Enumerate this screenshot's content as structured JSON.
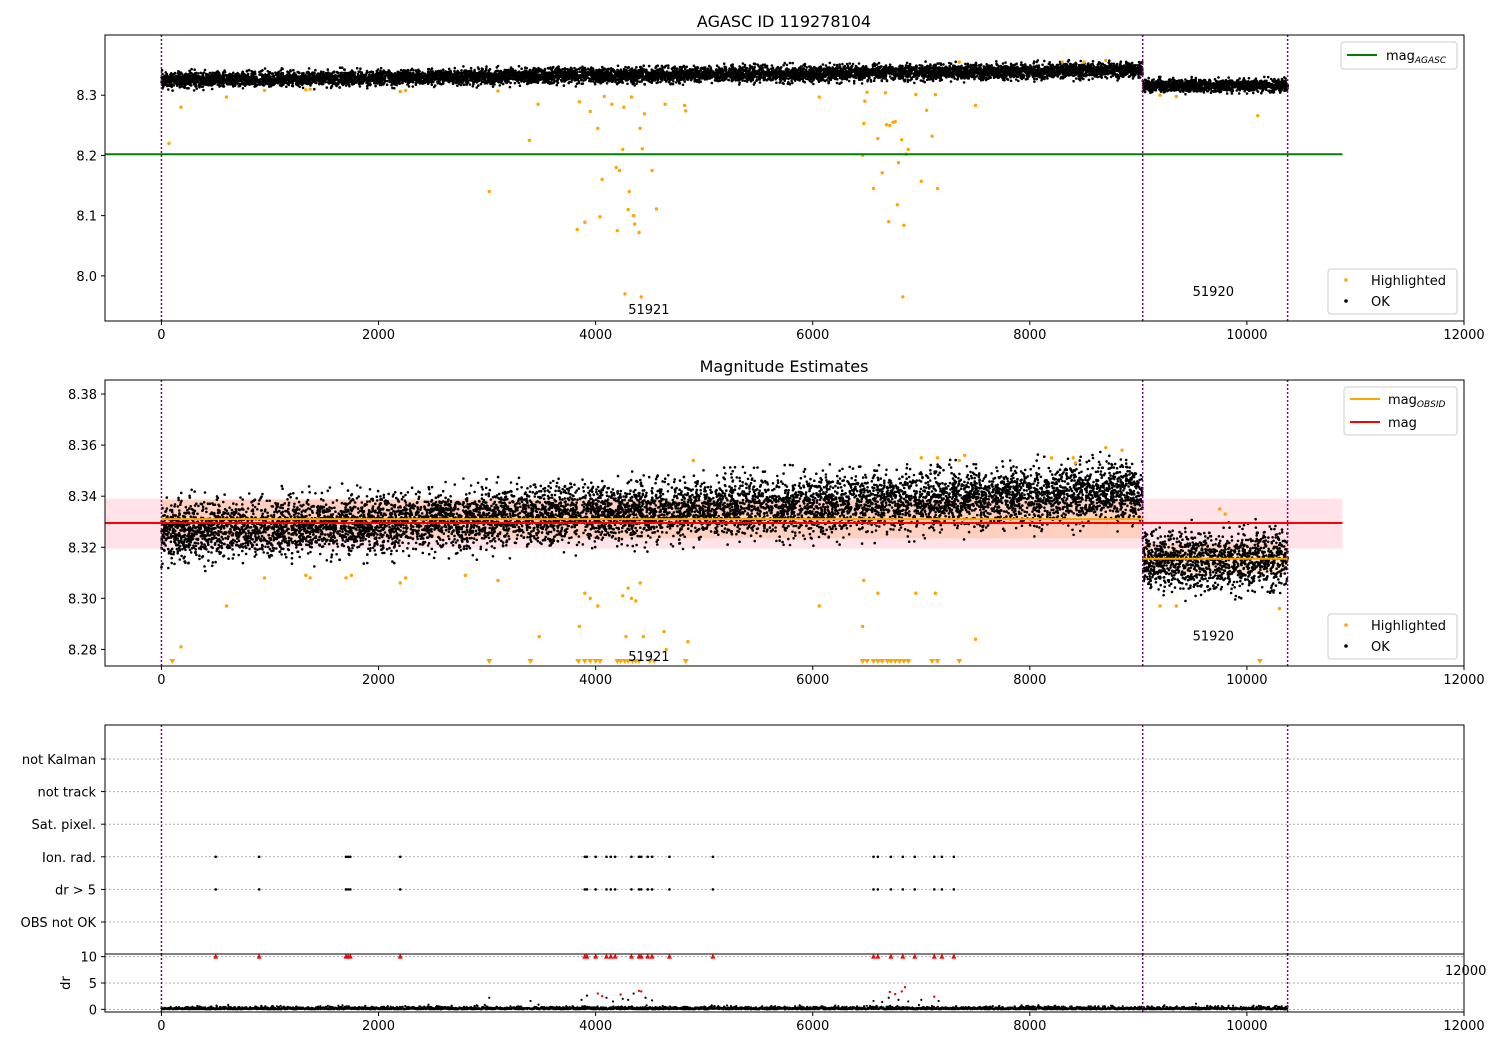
{
  "chart_data": [
    {
      "type": "scatter",
      "title": "AGASC ID 119278104",
      "xlim": [
        -520,
        12000
      ],
      "ylim": [
        7.925,
        8.4
      ],
      "x_ticks": [
        0,
        2000,
        4000,
        6000,
        8000,
        10000,
        12000
      ],
      "y_ticks": [
        8.0,
        8.1,
        8.2,
        8.3
      ],
      "y_tick_labels": [
        "8.0",
        "8.1",
        "8.2",
        "8.3"
      ],
      "grid": false,
      "vlines": [
        0,
        9040,
        10375
      ],
      "segments": [
        {
          "start": 0,
          "end": 9040,
          "label": "51921",
          "label_x": 4300,
          "label_y": 7.945
        },
        {
          "start": 9040,
          "end": 10375,
          "label": "51920",
          "label_x": 9500,
          "label_y": 7.975
        }
      ],
      "lines": [
        {
          "name": "mag_AGASC",
          "y": 8.202,
          "x_range": [
            -520,
            10880
          ],
          "color": "#008000"
        }
      ],
      "ok_bands": [
        {
          "x": [
            0,
            9040
          ],
          "center": [
            8.325,
            8.342
          ],
          "spread": 0.011
        },
        {
          "x": [
            9040,
            10375
          ],
          "center": [
            8.316,
            8.316
          ],
          "spread": 0.009
        }
      ],
      "highlighted_points": [
        [
          70,
          8.22
        ],
        [
          180,
          8.28
        ],
        [
          600,
          8.297
        ],
        [
          950,
          8.308
        ],
        [
          1330,
          8.309
        ],
        [
          1370,
          8.31
        ],
        [
          2200,
          8.306
        ],
        [
          2250,
          8.308
        ],
        [
          3020,
          8.14
        ],
        [
          3100,
          8.307
        ],
        [
          3390,
          8.225
        ],
        [
          3470,
          8.285
        ],
        [
          3830,
          8.077
        ],
        [
          3850,
          8.289
        ],
        [
          3900,
          8.089
        ],
        [
          3950,
          8.273
        ],
        [
          4020,
          8.245
        ],
        [
          4040,
          8.098
        ],
        [
          4060,
          8.16
        ],
        [
          4080,
          8.298
        ],
        [
          4150,
          8.285
        ],
        [
          4190,
          8.18
        ],
        [
          4200,
          8.075
        ],
        [
          4220,
          8.175
        ],
        [
          4250,
          8.21
        ],
        [
          4260,
          8.28
        ],
        [
          4270,
          7.97
        ],
        [
          4300,
          8.11
        ],
        [
          4310,
          8.14
        ],
        [
          4330,
          8.297
        ],
        [
          4350,
          8.1
        ],
        [
          4360,
          8.086
        ],
        [
          4400,
          8.072
        ],
        [
          4410,
          8.245
        ],
        [
          4420,
          7.965
        ],
        [
          4430,
          8.211
        ],
        [
          4450,
          8.269
        ],
        [
          4520,
          8.175
        ],
        [
          4560,
          8.111
        ],
        [
          4640,
          8.285
        ],
        [
          4820,
          8.283
        ],
        [
          4830,
          8.274
        ],
        [
          6060,
          8.297
        ],
        [
          6460,
          8.2
        ],
        [
          6470,
          8.253
        ],
        [
          6480,
          8.29
        ],
        [
          6500,
          8.305
        ],
        [
          6560,
          8.145
        ],
        [
          6600,
          8.228
        ],
        [
          6640,
          8.171
        ],
        [
          6670,
          8.304
        ],
        [
          6680,
          8.251
        ],
        [
          6700,
          8.09
        ],
        [
          6710,
          8.25
        ],
        [
          6740,
          8.255
        ],
        [
          6760,
          8.256
        ],
        [
          6780,
          8.118
        ],
        [
          6790,
          8.188
        ],
        [
          6820,
          8.226
        ],
        [
          6840,
          8.084
        ],
        [
          6860,
          8.202
        ],
        [
          6880,
          8.21
        ],
        [
          6830,
          7.965
        ],
        [
          6950,
          8.301
        ],
        [
          7000,
          8.157
        ],
        [
          7050,
          8.275
        ],
        [
          7100,
          8.232
        ],
        [
          7130,
          8.301
        ],
        [
          7150,
          8.145
        ],
        [
          7350,
          8.355
        ],
        [
          7500,
          8.283
        ],
        [
          8300,
          8.355
        ],
        [
          8500,
          8.355
        ],
        [
          8700,
          8.358
        ],
        [
          9200,
          8.3
        ],
        [
          9350,
          8.298
        ],
        [
          10100,
          8.266
        ]
      ],
      "legend": {
        "position": "top-right",
        "entries": [
          "mag_AGASC"
        ]
      },
      "legend_points": {
        "position": "bottom-right",
        "entries": [
          "Highlighted",
          "OK"
        ]
      }
    },
    {
      "type": "scatter",
      "title": "Magnitude Estimates",
      "xlim": [
        -520,
        12000
      ],
      "ylim": [
        8.2735,
        8.3855
      ],
      "x_ticks": [
        0,
        2000,
        4000,
        6000,
        8000,
        10000,
        12000
      ],
      "y_ticks": [
        8.28,
        8.3,
        8.32,
        8.34,
        8.36,
        8.38
      ],
      "y_tick_labels": [
        "8.28",
        "8.30",
        "8.32",
        "8.34",
        "8.36",
        "8.38"
      ],
      "grid": false,
      "vlines": [
        0,
        9040,
        10375
      ],
      "segments": [
        {
          "start": 0,
          "end": 9040,
          "label": "51921",
          "label_x": 4300,
          "label_y": 8.2775
        },
        {
          "start": 9040,
          "end": 10375,
          "label": "51920",
          "label_x": 9500,
          "label_y": 8.2855
        }
      ],
      "lines": [
        {
          "name": "mag_OBSID",
          "segments": [
            {
              "x": [
                0,
                9040
              ],
              "y": 8.331
            },
            {
              "x": [
                9040,
                10375
              ],
              "y": 8.3155
            }
          ],
          "color": "#ffa500"
        },
        {
          "name": "mag",
          "y": 8.3295,
          "x_range": [
            -520,
            10880
          ],
          "color": "#ff0000"
        }
      ],
      "mag_band": {
        "low": 8.3195,
        "high": 8.339
      },
      "obsid_bands": [
        {
          "x": [
            0,
            9040
          ],
          "low": 8.3235,
          "high": 8.3385
        },
        {
          "x": [
            9040,
            10375
          ],
          "low": 8.3095,
          "high": 8.3215
        }
      ],
      "ok_bands": [
        {
          "x": [
            0,
            9040
          ],
          "center": [
            8.326,
            8.342
          ],
          "spread": 0.01
        },
        {
          "x": [
            9040,
            10375
          ],
          "center": [
            8.315,
            8.315
          ],
          "spread": 0.01
        }
      ],
      "highlighted_points": [
        [
          180,
          8.281
        ],
        [
          600,
          8.297
        ],
        [
          950,
          8.308
        ],
        [
          1330,
          8.309
        ],
        [
          1370,
          8.308
        ],
        [
          1700,
          8.308
        ],
        [
          1750,
          8.309
        ],
        [
          2200,
          8.306
        ],
        [
          2250,
          8.308
        ],
        [
          2800,
          8.309
        ],
        [
          3100,
          8.307
        ],
        [
          3480,
          8.285
        ],
        [
          3850,
          8.289
        ],
        [
          3900,
          8.302
        ],
        [
          3950,
          8.3
        ],
        [
          4020,
          8.297
        ],
        [
          4250,
          8.301
        ],
        [
          4280,
          8.285
        ],
        [
          4300,
          8.304
        ],
        [
          4330,
          8.3
        ],
        [
          4370,
          8.299
        ],
        [
          4410,
          8.306
        ],
        [
          4440,
          8.285
        ],
        [
          4630,
          8.287
        ],
        [
          4650,
          8.28
        ],
        [
          4850,
          8.283
        ],
        [
          4900,
          8.354
        ],
        [
          6060,
          8.297
        ],
        [
          6460,
          8.289
        ],
        [
          6470,
          8.307
        ],
        [
          6600,
          8.302
        ],
        [
          6950,
          8.302
        ],
        [
          7000,
          8.355
        ],
        [
          7130,
          8.302
        ],
        [
          7150,
          8.355
        ],
        [
          7350,
          8.354
        ],
        [
          7400,
          8.356
        ],
        [
          7500,
          8.284
        ],
        [
          8200,
          8.355
        ],
        [
          8400,
          8.355
        ],
        [
          8420,
          8.353
        ],
        [
          8700,
          8.359
        ],
        [
          8850,
          8.358
        ],
        [
          9200,
          8.297
        ],
        [
          9350,
          8.297
        ],
        [
          9750,
          8.335
        ],
        [
          9800,
          8.333
        ],
        [
          10300,
          8.296
        ]
      ],
      "below_range_x": [
        100,
        3020,
        3400,
        3840,
        3900,
        3950,
        4000,
        4040,
        4200,
        4230,
        4270,
        4300,
        4340,
        4370,
        4400,
        4500,
        4540,
        4830,
        6460,
        6500,
        6560,
        6600,
        6640,
        6690,
        6720,
        6760,
        6800,
        6840,
        6880,
        7100,
        7150,
        7350,
        10120
      ],
      "legend": {
        "position": "top-right",
        "entries": [
          "mag_OBSID",
          "mag"
        ]
      },
      "legend_points": {
        "position": "bottom-right",
        "entries": [
          "Highlighted",
          "OK"
        ]
      }
    },
    {
      "type": "scatter",
      "title": "",
      "xlim": [
        -520,
        12000
      ],
      "categories": [
        "not Kalman",
        "not track",
        "Sat. pixel.",
        "Ion. rad.",
        "dr > 5",
        "OBS not OK"
      ],
      "grid": true,
      "vlines": [
        0,
        9040,
        10375
      ],
      "flag_x": [
        500,
        900,
        1700,
        1720,
        1740,
        2200,
        3900,
        3920,
        4000,
        4100,
        4140,
        4180,
        4330,
        4400,
        4420,
        4480,
        4520,
        4680,
        5080,
        6560,
        6600,
        6720,
        6830,
        6940,
        7120,
        7190,
        7300
      ],
      "flagged_categories": [
        "Ion. rad.",
        "dr > 5"
      ]
    },
    {
      "type": "scatter",
      "title": "",
      "xlim": [
        -520,
        12000
      ],
      "ylim": [
        -0.5,
        10.5
      ],
      "x_ticks": [
        0,
        2000,
        4000,
        6000,
        8000,
        10000,
        12000
      ],
      "y_ticks": [
        0,
        5,
        10
      ],
      "ylabel": "dr",
      "grid": true,
      "vlines": [
        0,
        9040,
        10375
      ],
      "dr_capped_x": [
        500,
        900,
        1700,
        1720,
        1740,
        2200,
        3900,
        3920,
        4000,
        4100,
        4140,
        4180,
        4330,
        4400,
        4420,
        4480,
        4520,
        4680,
        5080,
        6560,
        6600,
        6720,
        6830,
        6940,
        7120,
        7190,
        7300
      ],
      "dr_points_red": [
        [
          4020,
          3.0
        ],
        [
          4060,
          2.5
        ],
        [
          4230,
          2.8
        ],
        [
          4400,
          3.5
        ],
        [
          4420,
          3.4
        ],
        [
          6710,
          3.3
        ],
        [
          6760,
          2.9
        ],
        [
          6820,
          3.4
        ],
        [
          6850,
          4.2
        ],
        [
          7120,
          2.4
        ]
      ],
      "dr_points_black": [
        [
          3020,
          2.2
        ],
        [
          3400,
          1.6
        ],
        [
          3870,
          1.8
        ],
        [
          3920,
          2.6
        ],
        [
          4100,
          2.2
        ],
        [
          4160,
          1.5
        ],
        [
          4250,
          2.0
        ],
        [
          4300,
          1.8
        ],
        [
          4350,
          3.0
        ],
        [
          4460,
          2.2
        ],
        [
          4520,
          1.7
        ],
        [
          6560,
          1.6
        ],
        [
          6640,
          1.4
        ],
        [
          6700,
          2.2
        ],
        [
          6790,
          1.8
        ],
        [
          6880,
          1.5
        ],
        [
          7000,
          1.8
        ],
        [
          7160,
          1.6
        ]
      ],
      "overlap_label": "12000"
    }
  ]
}
